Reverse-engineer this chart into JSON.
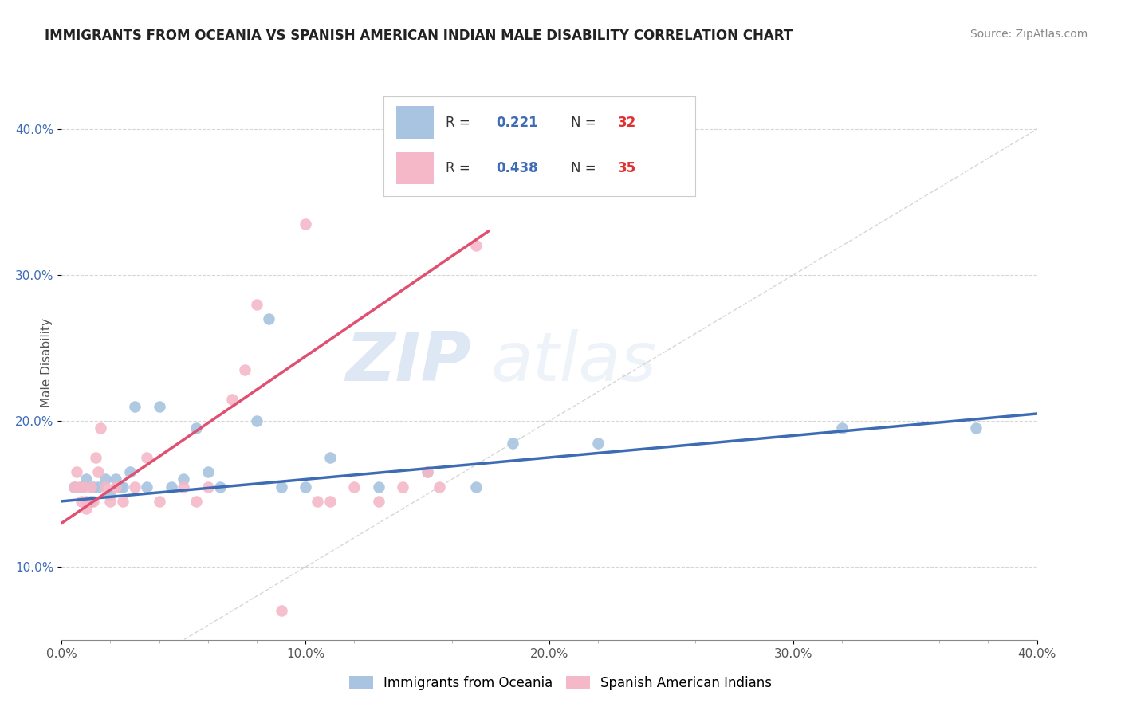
{
  "title": "IMMIGRANTS FROM OCEANIA VS SPANISH AMERICAN INDIAN MALE DISABILITY CORRELATION CHART",
  "source": "Source: ZipAtlas.com",
  "ylabel": "Male Disability",
  "watermark_zip": "ZIP",
  "watermark_atlas": "atlas",
  "xmin": 0.0,
  "xmax": 0.4,
  "ymin": 0.05,
  "ymax": 0.43,
  "x_tick_labels": [
    "0.0%",
    "",
    "",
    "",
    "",
    "10.0%",
    "",
    "",
    "",
    "",
    "20.0%",
    "",
    "",
    "",
    "",
    "30.0%",
    "",
    "",
    "",
    "",
    "40.0%"
  ],
  "x_tick_values": [
    0.0,
    0.02,
    0.04,
    0.06,
    0.08,
    0.1,
    0.12,
    0.14,
    0.16,
    0.18,
    0.2,
    0.22,
    0.24,
    0.26,
    0.28,
    0.3,
    0.32,
    0.34,
    0.36,
    0.38,
    0.4
  ],
  "y_tick_labels": [
    "10.0%",
    "20.0%",
    "30.0%",
    "40.0%"
  ],
  "y_tick_values": [
    0.1,
    0.2,
    0.3,
    0.4
  ],
  "legend_label1": "Immigrants from Oceania",
  "legend_label2": "Spanish American Indians",
  "R1": "0.221",
  "N1": "32",
  "R2": "0.438",
  "N2": "35",
  "color1": "#a8c4e0",
  "color2": "#f4b8c8",
  "trendline1_color": "#3d6cb5",
  "trendline2_color": "#e05070",
  "diag_color": "#cccccc",
  "scatter1_x": [
    0.005,
    0.008,
    0.01,
    0.012,
    0.013,
    0.015,
    0.018,
    0.02,
    0.022,
    0.024,
    0.025,
    0.028,
    0.03,
    0.035,
    0.04,
    0.045,
    0.05,
    0.055,
    0.06,
    0.065,
    0.08,
    0.085,
    0.09,
    0.1,
    0.11,
    0.13,
    0.15,
    0.17,
    0.185,
    0.22,
    0.32,
    0.375
  ],
  "scatter1_y": [
    0.155,
    0.155,
    0.16,
    0.145,
    0.155,
    0.155,
    0.16,
    0.15,
    0.16,
    0.155,
    0.155,
    0.165,
    0.21,
    0.155,
    0.21,
    0.155,
    0.16,
    0.195,
    0.165,
    0.155,
    0.2,
    0.27,
    0.155,
    0.155,
    0.175,
    0.155,
    0.165,
    0.155,
    0.185,
    0.185,
    0.195,
    0.195
  ],
  "scatter2_x": [
    0.005,
    0.006,
    0.007,
    0.008,
    0.009,
    0.01,
    0.01,
    0.012,
    0.013,
    0.014,
    0.015,
    0.016,
    0.018,
    0.02,
    0.022,
    0.025,
    0.03,
    0.035,
    0.04,
    0.05,
    0.055,
    0.06,
    0.07,
    0.075,
    0.08,
    0.09,
    0.1,
    0.105,
    0.11,
    0.12,
    0.13,
    0.14,
    0.15,
    0.155,
    0.17
  ],
  "scatter2_y": [
    0.155,
    0.165,
    0.155,
    0.145,
    0.155,
    0.145,
    0.14,
    0.155,
    0.145,
    0.175,
    0.165,
    0.195,
    0.155,
    0.145,
    0.155,
    0.145,
    0.155,
    0.175,
    0.145,
    0.155,
    0.145,
    0.155,
    0.215,
    0.235,
    0.28,
    0.07,
    0.335,
    0.145,
    0.145,
    0.155,
    0.145,
    0.155,
    0.165,
    0.155,
    0.32
  ],
  "trendline1_x": [
    0.0,
    0.4
  ],
  "trendline1_y": [
    0.145,
    0.205
  ],
  "trendline2_x": [
    0.0,
    0.175
  ],
  "trendline2_y": [
    0.13,
    0.33
  ]
}
